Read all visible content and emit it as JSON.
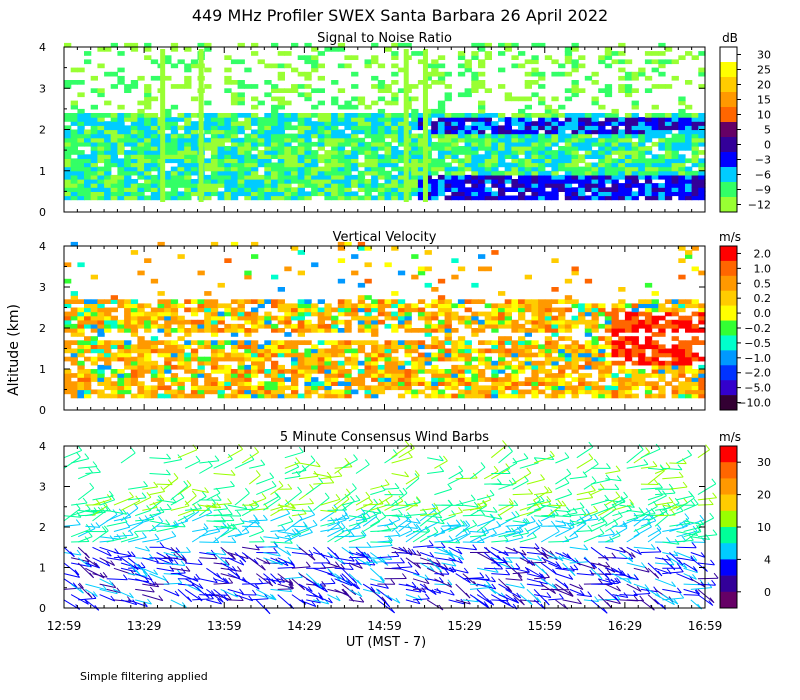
{
  "title": "449 MHz Profiler SWEX Santa Barbara 26 April 2022",
  "ylabel": "Altitude (km)",
  "xlabel": "UT  (MST - 7)",
  "footer": "Simple filtering applied",
  "time_ticks": [
    "12:59",
    "13:29",
    "13:59",
    "14:29",
    "14:59",
    "15:29",
    "15:59",
    "16:29",
    "16:59"
  ],
  "chart_data": [
    {
      "type": "heatmap",
      "title": "Signal to Noise Ratio",
      "ylim": [
        0,
        4
      ],
      "ytick_labels": [
        "0",
        "1",
        "2",
        "3",
        "4"
      ],
      "xlim": [
        "12:59",
        "16:59"
      ],
      "colorbar": {
        "unit": "dB",
        "labels": [
          "30",
          "25",
          "20",
          "15",
          "10",
          "5",
          "0",
          "−3",
          "−6",
          "−9",
          "−12"
        ],
        "colors": [
          "#ffffff",
          "#ffff00",
          "#ffcc00",
          "#ff9900",
          "#ff6600",
          "#660066",
          "#330099",
          "#0000ff",
          "#00ccff",
          "#33ff66",
          "#99ff33"
        ]
      }
    },
    {
      "type": "heatmap",
      "title": "Vertical Velocity",
      "ylim": [
        0,
        4
      ],
      "ytick_labels": [
        "0",
        "1",
        "2",
        "3",
        "4"
      ],
      "xlim": [
        "12:59",
        "16:59"
      ],
      "colorbar": {
        "unit": "m/s",
        "labels": [
          "2.0",
          "1.0",
          "0.5",
          "0.2",
          "0.0",
          "−0.2",
          "−0.5",
          "−1.0",
          "−2.0",
          "−5.0",
          "−10.0"
        ],
        "colors": [
          "#ff0000",
          "#ff6600",
          "#ff9900",
          "#ffcc00",
          "#ffff00",
          "#33ff33",
          "#00ffcc",
          "#0099ff",
          "#0033ff",
          "#3300cc",
          "#330033"
        ]
      }
    },
    {
      "type": "scatter",
      "title": "5 Minute Consensus Wind Barbs",
      "ylim": [
        0,
        4
      ],
      "ytick_labels": [
        "0",
        "1",
        "2",
        "3",
        "4"
      ],
      "xlim": [
        "12:59",
        "16:59"
      ],
      "colorbar": {
        "unit": "m/s",
        "labels": [
          "30",
          "20",
          "10",
          "4",
          "0"
        ],
        "colors": [
          "#ff0000",
          "#ff6600",
          "#ff9900",
          "#ffcc00",
          "#99ff00",
          "#00ff99",
          "#00ccff",
          "#0000ff",
          "#330099",
          "#660066"
        ]
      }
    }
  ]
}
